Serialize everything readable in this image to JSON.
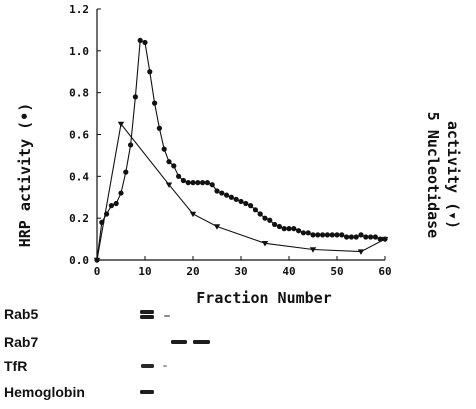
{
  "chart_data": {
    "type": "line",
    "xlabel": "Fraction Number",
    "ylabel": "HRP activity (•)",
    "y2label_line1": "5 Nucleotidase",
    "y2label_line2": "activity (▾)",
    "xlim": [
      0,
      60
    ],
    "ylim": [
      0,
      1.2
    ],
    "x_ticks": [
      "0",
      "10",
      "20",
      "30",
      "40",
      "50",
      "60"
    ],
    "y_ticks": [
      "0.0",
      "0.2",
      "0.4",
      "0.6",
      "0.8",
      "1.0",
      "1.2"
    ],
    "grid": false,
    "series": [
      {
        "marker": "circle",
        "x": [
          0,
          1,
          2,
          3,
          4,
          5,
          6,
          7,
          8,
          9,
          10,
          11,
          12,
          13,
          14,
          15,
          16,
          17,
          18,
          19,
          20,
          21,
          22,
          23,
          24,
          25,
          26,
          27,
          28,
          29,
          30,
          31,
          32,
          33,
          34,
          35,
          36,
          37,
          38,
          39,
          40,
          41,
          42,
          43,
          44,
          45,
          46,
          47,
          48,
          49,
          50,
          51,
          52,
          53,
          54,
          55,
          56,
          57,
          58,
          59,
          60
        ],
        "values": [
          0.0,
          0.18,
          0.22,
          0.26,
          0.27,
          0.32,
          0.42,
          0.55,
          0.78,
          1.05,
          1.04,
          0.9,
          0.75,
          0.63,
          0.53,
          0.47,
          0.45,
          0.4,
          0.38,
          0.37,
          0.37,
          0.37,
          0.37,
          0.37,
          0.36,
          0.33,
          0.32,
          0.31,
          0.3,
          0.29,
          0.28,
          0.27,
          0.26,
          0.24,
          0.22,
          0.2,
          0.19,
          0.17,
          0.16,
          0.15,
          0.15,
          0.15,
          0.14,
          0.13,
          0.13,
          0.12,
          0.12,
          0.12,
          0.12,
          0.12,
          0.12,
          0.12,
          0.11,
          0.11,
          0.11,
          0.12,
          0.11,
          0.11,
          0.11,
          0.1,
          0.1
        ]
      },
      {
        "marker": "triangle-down",
        "x": [
          0,
          5,
          15,
          20,
          25,
          35,
          45,
          55,
          60
        ],
        "values": [
          0.0,
          0.65,
          0.36,
          0.22,
          0.16,
          0.08,
          0.05,
          0.04,
          0.1
        ]
      }
    ]
  },
  "blot": {
    "rows": [
      {
        "label": "Rab5",
        "bands": [
          {
            "x": 140,
            "w": 14,
            "dy": -2,
            "h": 4,
            "o": 0.95
          },
          {
            "x": 140,
            "w": 14,
            "dy": 3,
            "h": 4,
            "o": 0.95
          },
          {
            "x": 164,
            "w": 6,
            "dy": 2,
            "h": 2,
            "o": 0.5
          }
        ]
      },
      {
        "label": "Rab7",
        "bands": [
          {
            "x": 171,
            "w": 16,
            "dy": 0,
            "h": 4,
            "o": 0.95
          },
          {
            "x": 193,
            "w": 17,
            "dy": 0,
            "h": 4,
            "o": 0.95
          }
        ]
      },
      {
        "label": "TfR",
        "bands": [
          {
            "x": 141,
            "w": 13,
            "dy": 0,
            "h": 4,
            "o": 0.9
          },
          {
            "x": 163,
            "w": 4,
            "dy": 0,
            "h": 2,
            "o": 0.4
          }
        ]
      },
      {
        "label": "Hemoglobin",
        "bands": [
          {
            "x": 140,
            "w": 14,
            "dy": 0,
            "h": 4,
            "o": 0.95
          }
        ]
      }
    ]
  }
}
